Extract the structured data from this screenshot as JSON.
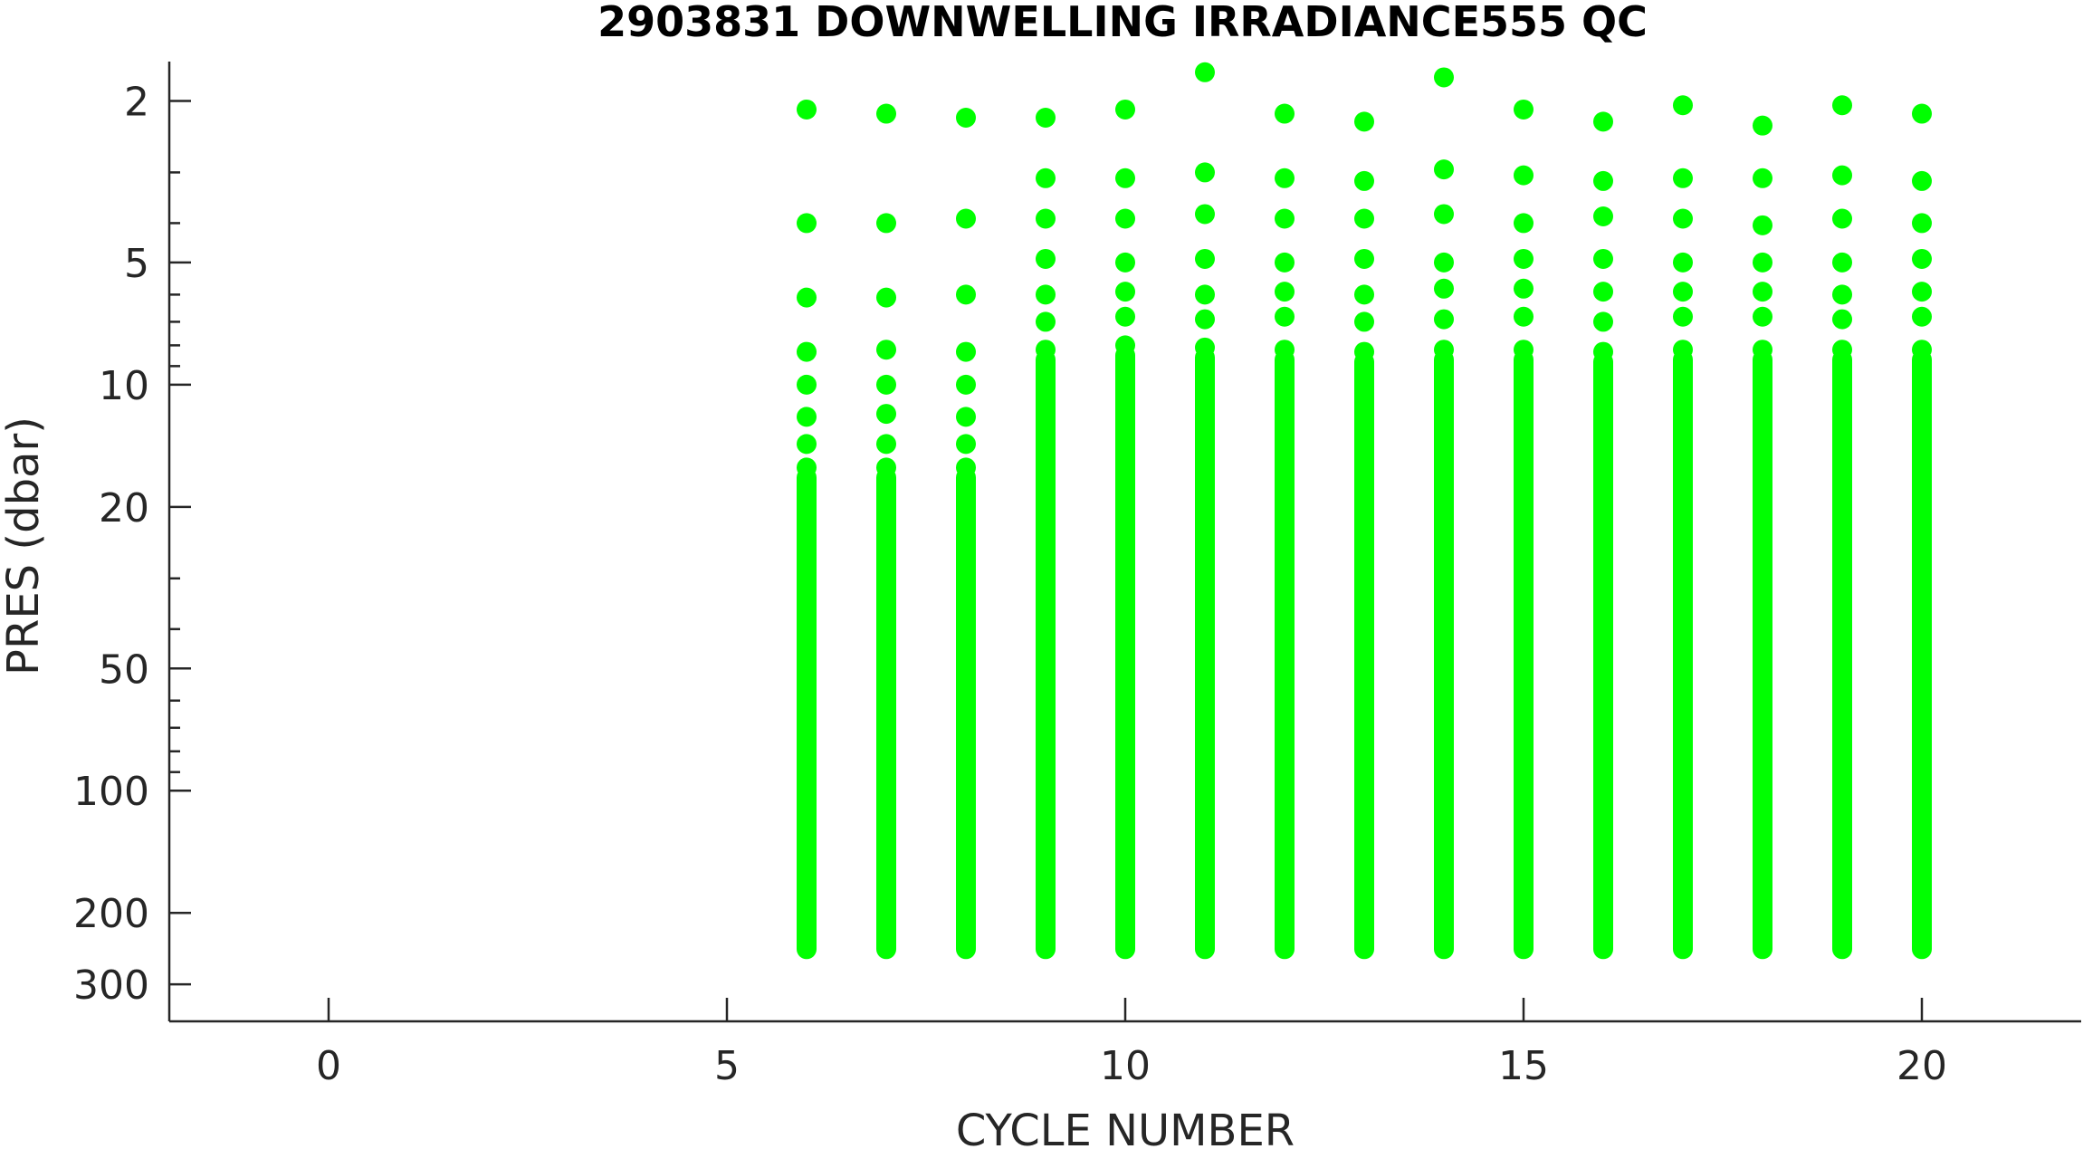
{
  "chart_data": {
    "type": "scatter",
    "title": "2903831  DOWNWELLING IRRADIANCE555 QC",
    "xlabel": "CYCLE NUMBER",
    "ylabel": "PRES (dbar)",
    "xlim": [
      -2,
      22
    ],
    "ylim": [
      1.6,
      370
    ],
    "yscale": "log",
    "yreversed": true,
    "grid": false,
    "x_ticks": [
      0,
      5,
      10,
      15,
      20
    ],
    "y_ticks": [
      2,
      5,
      10,
      20,
      50,
      100,
      200,
      300
    ],
    "y_minor_ticks": [
      3,
      4,
      6,
      7,
      8,
      9,
      30,
      40,
      60,
      70,
      80,
      90
    ],
    "marker_color": "#00ff00",
    "profile_bottom_pres": 260,
    "series": [
      {
        "values": [
          {
            "cycle": 6,
            "pres": [
              2.1,
              4.0,
              6.1,
              8.3,
              10.0,
              12.0,
              14.0,
              16.0
            ]
          },
          {
            "cycle": 7,
            "pres": [
              2.15,
              4.0,
              6.1,
              8.2,
              10.0,
              11.8,
              14.0,
              16.0
            ]
          },
          {
            "cycle": 8,
            "pres": [
              2.2,
              3.9,
              6.0,
              8.3,
              10.0,
              12.0,
              14.0,
              16.0
            ]
          },
          {
            "cycle": 9,
            "pres": [
              2.2,
              3.1,
              3.9,
              4.9,
              6.0,
              7.0,
              8.2
            ]
          },
          {
            "cycle": 10,
            "pres": [
              2.1,
              3.1,
              3.9,
              5.0,
              5.9,
              6.8,
              8.0
            ]
          },
          {
            "cycle": 11,
            "pres": [
              1.7,
              3.0,
              3.8,
              4.9,
              6.0,
              6.9,
              8.1
            ]
          },
          {
            "cycle": 12,
            "pres": [
              2.15,
              3.1,
              3.9,
              5.0,
              5.9,
              6.8,
              8.2
            ]
          },
          {
            "cycle": 13,
            "pres": [
              2.25,
              3.15,
              3.9,
              4.9,
              6.0,
              7.0,
              8.3
            ]
          },
          {
            "cycle": 14,
            "pres": [
              1.75,
              2.95,
              3.8,
              5.0,
              5.8,
              6.9,
              8.2
            ]
          },
          {
            "cycle": 15,
            "pres": [
              2.1,
              3.05,
              4.0,
              4.9,
              5.8,
              6.8,
              8.2
            ]
          },
          {
            "cycle": 16,
            "pres": [
              2.25,
              3.15,
              3.85,
              4.9,
              5.9,
              7.0,
              8.3
            ]
          },
          {
            "cycle": 17,
            "pres": [
              2.05,
              3.1,
              3.9,
              5.0,
              5.9,
              6.8,
              8.2
            ]
          },
          {
            "cycle": 18,
            "pres": [
              2.3,
              3.1,
              4.05,
              5.0,
              5.9,
              6.8,
              8.2
            ]
          },
          {
            "cycle": 19,
            "pres": [
              2.05,
              3.05,
              3.9,
              5.0,
              6.0,
              6.9,
              8.2
            ]
          },
          {
            "cycle": 20,
            "pres": [
              2.15,
              3.15,
              4.0,
              4.9,
              5.9,
              6.8,
              8.2
            ]
          }
        ]
      }
    ]
  }
}
